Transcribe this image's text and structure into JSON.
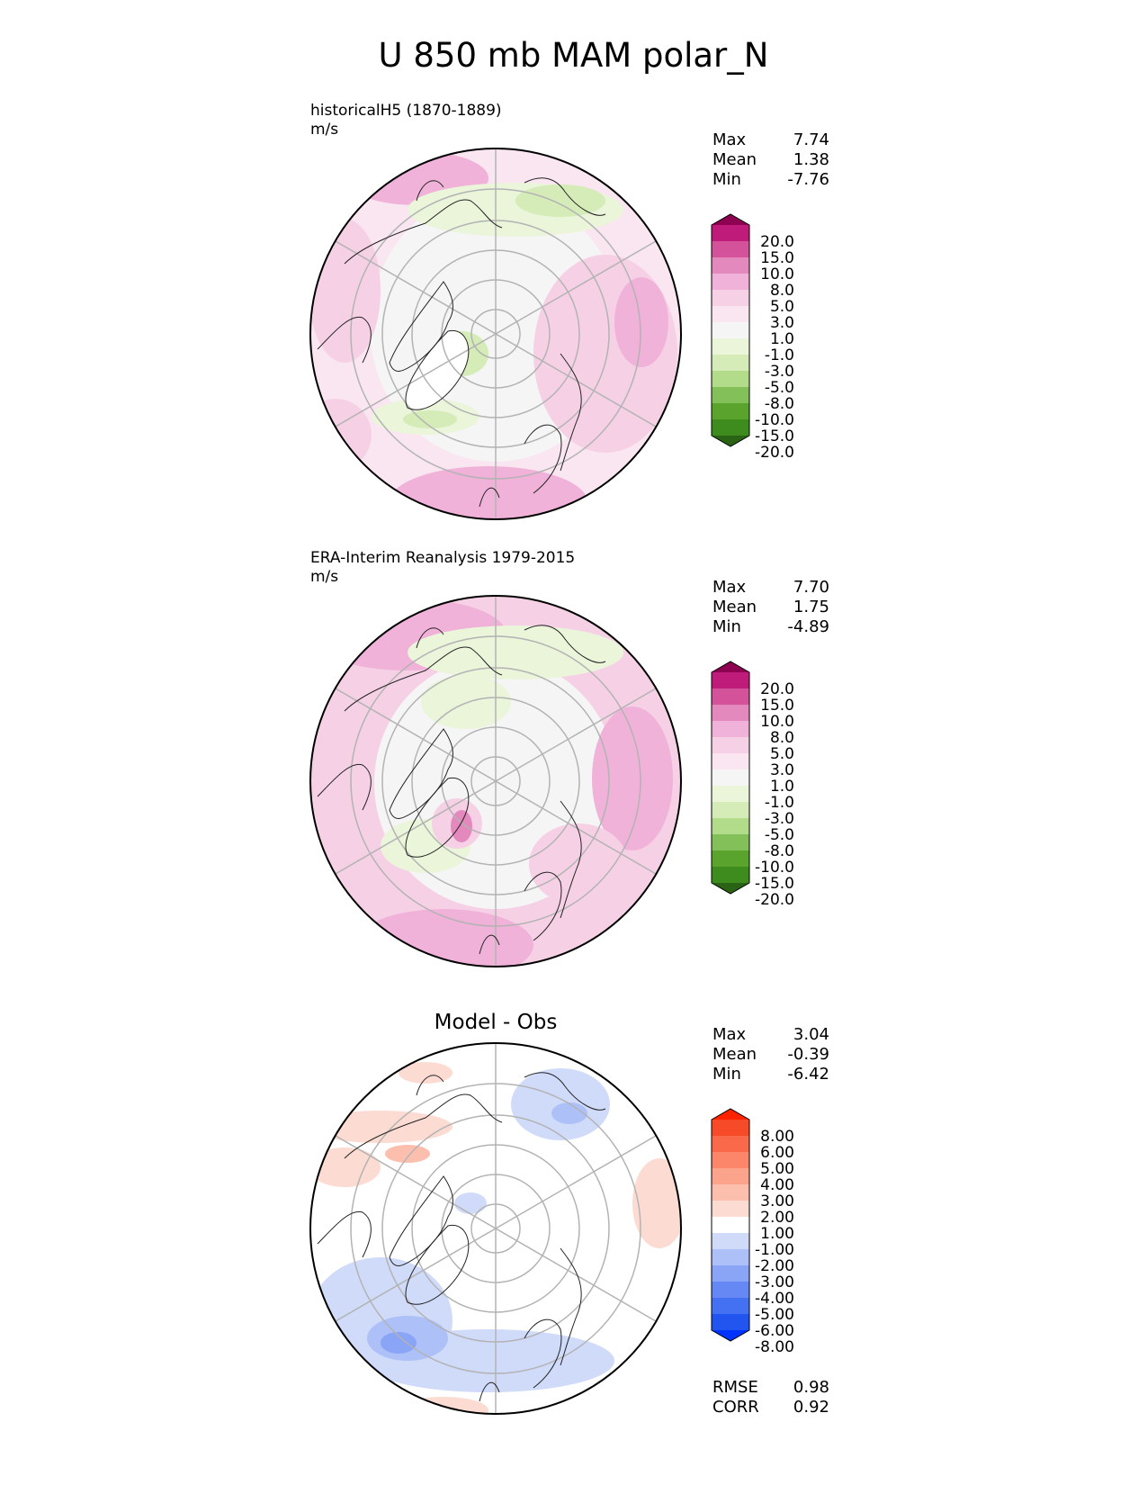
{
  "figure": {
    "title": "U 850 mb MAM polar_N"
  },
  "palettes": {
    "field": [
      "#2b6315",
      "#3e8c1e",
      "#5aa42e",
      "#84c05a",
      "#b2db8a",
      "#d5ecb8",
      "#eaf5da",
      "#f5f5f5",
      "#f9e6f0",
      "#f6d1e6",
      "#f0b2d9",
      "#e489bd",
      "#d45299",
      "#bf1b7a",
      "#8e0152"
    ],
    "diff": [
      "#0033ff",
      "#2255f0",
      "#4470f2",
      "#6688f4",
      "#8aa4f6",
      "#adc0f8",
      "#d0dbfa",
      "#ffffff",
      "#fcdcd2",
      "#fcbfae",
      "#fca38c",
      "#fb866a",
      "#fa6a4a",
      "#f64a28",
      "#ff2200"
    ]
  },
  "panels": [
    {
      "caption_line1": "historicalH5 (1870-1889)",
      "caption_line2": "m/s",
      "stats": [
        {
          "label": "Max",
          "value": "7.74"
        },
        {
          "label": "Mean",
          "value": "1.38"
        },
        {
          "label": "Min",
          "value": "-7.76"
        }
      ],
      "colorbar_ticks": [
        "20.0",
        "15.0",
        "10.0",
        "8.0",
        "5.0",
        "3.0",
        "1.0",
        "-1.0",
        "-3.0",
        "-5.0",
        "-8.0",
        "-10.0",
        "-15.0",
        "-20.0"
      ]
    },
    {
      "caption_line1": "ERA-Interim Reanalysis 1979-2015",
      "caption_line2": "m/s",
      "stats": [
        {
          "label": "Max",
          "value": "7.70"
        },
        {
          "label": "Mean",
          "value": "1.75"
        },
        {
          "label": "Min",
          "value": "-4.89"
        }
      ],
      "colorbar_ticks": [
        "20.0",
        "15.0",
        "10.0",
        "8.0",
        "5.0",
        "3.0",
        "1.0",
        "-1.0",
        "-3.0",
        "-5.0",
        "-8.0",
        "-10.0",
        "-15.0",
        "-20.0"
      ]
    },
    {
      "panel_title": "Model - Obs",
      "stats": [
        {
          "label": "Max",
          "value": "3.04"
        },
        {
          "label": "Mean",
          "value": "-0.39"
        },
        {
          "label": "Min",
          "value": "-6.42"
        }
      ],
      "colorbar_ticks": [
        "8.00",
        "6.00",
        "5.00",
        "4.00",
        "3.00",
        "2.00",
        "1.00",
        "-1.00",
        "-2.00",
        "-3.00",
        "-4.00",
        "-5.00",
        "-6.00",
        "-8.00"
      ],
      "metrics": [
        {
          "label": "RMSE",
          "value": "0.98"
        },
        {
          "label": "CORR",
          "value": "0.92"
        }
      ]
    }
  ]
}
